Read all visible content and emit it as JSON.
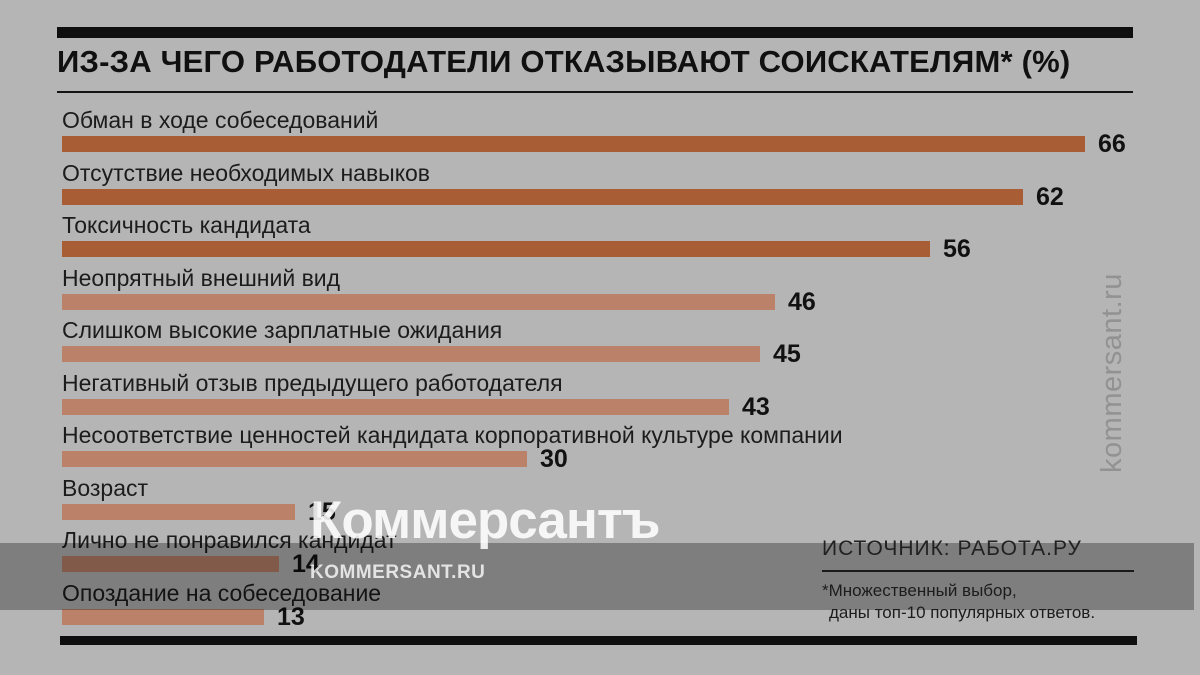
{
  "title": "ИЗ-ЗА ЧЕГО РАБОТОДАТЕЛИ ОТКАЗЫВАЮТ СОИСКАТЕЛЯМ* (%)",
  "chart_data": {
    "type": "bar",
    "orientation": "horizontal",
    "title": "ИЗ-ЗА ЧЕГО РАБОТОДАТЕЛИ ОТКАЗЫВАЮТ СОИСКАТЕЛЯМ* (%)",
    "unit": "%",
    "xlim": [
      0,
      66
    ],
    "grid": false,
    "legend": "none",
    "value_labels_shown": true,
    "categories": [
      "Обман в ходе собеседований",
      "Отсутствие необходимых навыков",
      "Токсичность кандидата",
      "Неопрятный внешний вид",
      "Слишком высокие зарплатные ожидания",
      "Негативный отзыв предыдущего работодателя",
      "Несоответствие ценностей кандидата корпоративной культуре компании",
      "Возраст",
      "Лично не понравился кандидат",
      "Опоздание на собеседование"
    ],
    "values": [
      66,
      62,
      56,
      46,
      45,
      43,
      30,
      15,
      14,
      13
    ],
    "bar_colors": [
      "#a85d34",
      "#a85d34",
      "#a85d34",
      "#bb8169",
      "#bb8169",
      "#bb8169",
      "#bb8169",
      "#bb8169",
      "#bb8169",
      "#bb8169"
    ]
  },
  "source": {
    "label": "ИСТОЧНИК: РАБОТА.РУ"
  },
  "footnote": {
    "line1": "*Множественный выбор,",
    "line2": "даны топ-10 популярных ответов."
  },
  "watermarks": {
    "logo": "Коммерсантъ",
    "site": "KOMMERSANT.RU",
    "vertical": "kommersant.ru"
  },
  "colors": {
    "background": "#b5b5b5",
    "bar_dark": "#a85d34",
    "bar_light": "#bb8169",
    "rule_black": "#0f0f0f",
    "text": "#1c1c1c",
    "watermark_band": "rgba(0,0,0,0.30)",
    "watermark_white": "rgba(255,255,255,0.87)",
    "watermark_gray": "#929292"
  }
}
